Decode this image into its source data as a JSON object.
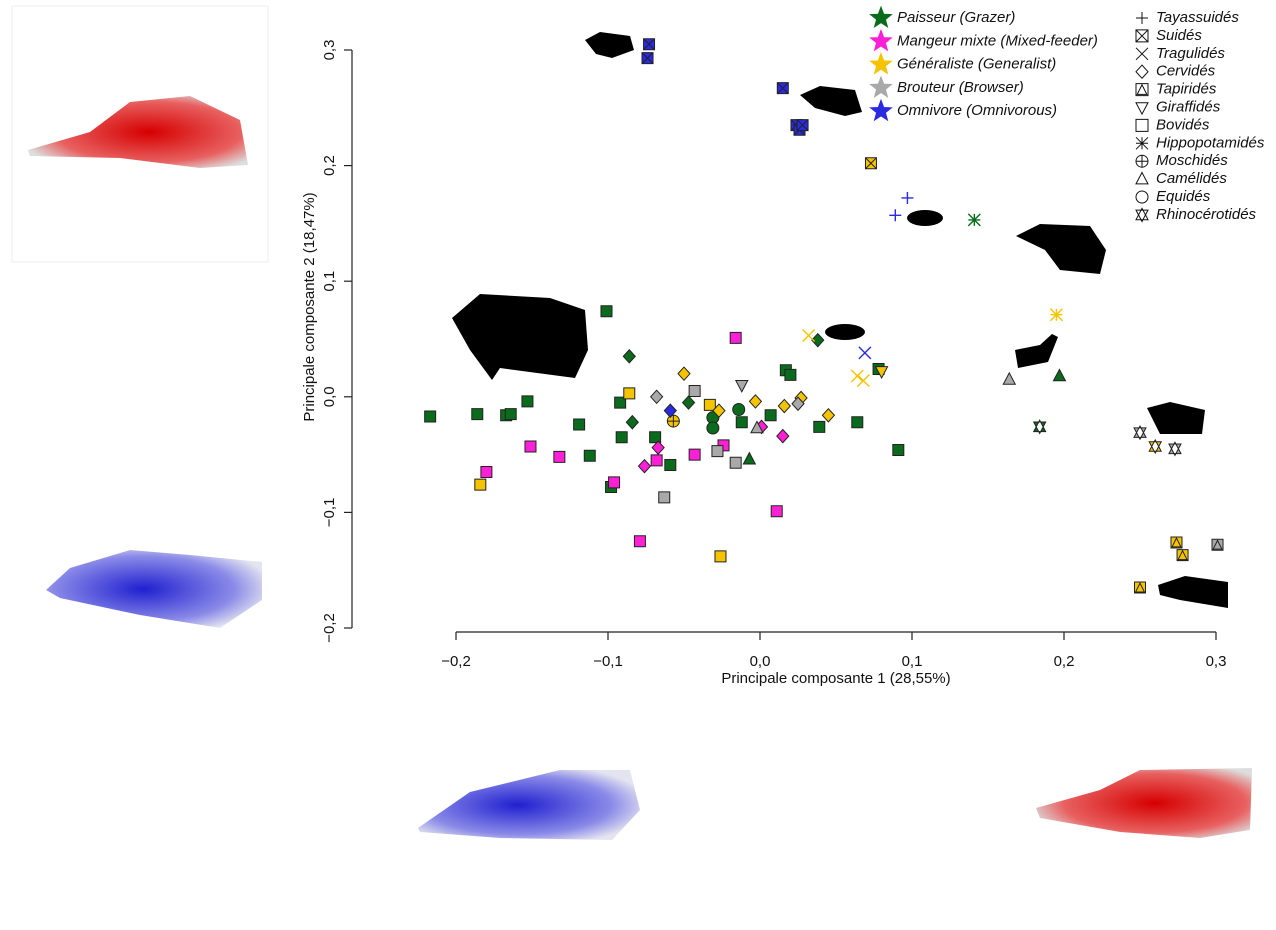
{
  "chart_data": {
    "type": "scatter",
    "x_label": "Principale composante 1 (28,55%)",
    "y_label": "Principale composante 2 (18,47%)",
    "xlim": [
      -0.2,
      0.3
    ],
    "ylim": [
      -0.2,
      0.3
    ],
    "xticks": [
      {
        "value": -0.2,
        "label": "−0,2"
      },
      {
        "value": -0.1,
        "label": "−0,1"
      },
      {
        "value": 0,
        "label": "0,0"
      },
      {
        "value": 0.1,
        "label": "0,1"
      },
      {
        "value": 0.2,
        "label": "0,2"
      },
      {
        "value": 0.3,
        "label": "0,3"
      }
    ],
    "yticks": [
      {
        "value": -0.2,
        "label": "−0,2"
      },
      {
        "value": -0.1,
        "label": "−0,1"
      },
      {
        "value": 0,
        "label": "0,0"
      },
      {
        "value": 0.1,
        "label": "0,1"
      },
      {
        "value": 0.2,
        "label": "0,2"
      },
      {
        "value": 0.3,
        "label": "0,3"
      }
    ],
    "families": [
      {
        "name": "Tayassuidés",
        "marker": "plus"
      },
      {
        "name": "Suidés",
        "marker": "crossbox"
      },
      {
        "name": "Tragulidés",
        "marker": "x"
      },
      {
        "name": "Cervidés",
        "marker": "diamond"
      },
      {
        "name": "Tapiridés",
        "marker": "tribox"
      },
      {
        "name": "Giraffidés",
        "marker": "triangle-down"
      },
      {
        "name": "Bovidés",
        "marker": "square"
      },
      {
        "name": "Hippopotamidés",
        "marker": "asterisk"
      },
      {
        "name": "Moschidés",
        "marker": "crosscircle"
      },
      {
        "name": "Camélidés",
        "marker": "triangle"
      },
      {
        "name": "Equidés",
        "marker": "circle"
      },
      {
        "name": "Rhinocérotidés",
        "marker": "hexstar"
      }
    ],
    "series": [
      {
        "name": "Paisseur (Grazer)",
        "color": "#0b6b1c",
        "x": [
          -0.101,
          -0.217,
          -0.186,
          -0.167,
          -0.164,
          -0.153,
          -0.119,
          -0.112,
          -0.098,
          -0.092,
          -0.091,
          -0.069,
          -0.059,
          -0.012,
          0.007,
          0.017,
          0.02,
          0.039,
          0.064,
          0.078,
          0.091,
          -0.086,
          -0.084,
          -0.047,
          0.038,
          -0.031,
          -0.031,
          -0.014,
          -0.007,
          0.197,
          0.141,
          0.184
        ],
        "values": [
          0.074,
          -0.017,
          -0.015,
          -0.016,
          -0.015,
          -0.004,
          -0.024,
          -0.051,
          -0.078,
          -0.005,
          -0.035,
          -0.035,
          -0.059,
          -0.022,
          -0.016,
          0.023,
          0.019,
          -0.026,
          -0.022,
          0.024,
          -0.046,
          0.035,
          -0.022,
          -0.005,
          0.049,
          -0.018,
          -0.027,
          -0.011,
          -0.054,
          0.018,
          0.153,
          -0.026
        ],
        "families": [
          "Bovidés",
          "Bovidés",
          "Bovidés",
          "Bovidés",
          "Bovidés",
          "Bovidés",
          "Bovidés",
          "Bovidés",
          "Bovidés",
          "Bovidés",
          "Bovidés",
          "Bovidés",
          "Bovidés",
          "Bovidés",
          "Bovidés",
          "Bovidés",
          "Bovidés",
          "Bovidés",
          "Bovidés",
          "Bovidés",
          "Bovidés",
          "Cervidés",
          "Cervidés",
          "Cervidés",
          "Cervidés",
          "Equidés",
          "Equidés",
          "Equidés",
          "Camélidés",
          "Camélidés",
          "Hippopotamidés",
          "Rhinocérotidés"
        ]
      },
      {
        "name": "Mangeur mixte (Mixed-feeder)",
        "color": "#ff1fd6",
        "x": [
          -0.016,
          -0.18,
          -0.151,
          -0.132,
          -0.096,
          -0.079,
          -0.068,
          -0.043,
          -0.024,
          0.011,
          -0.067,
          -0.076,
          0.001,
          0.015
        ],
        "values": [
          0.051,
          -0.065,
          -0.043,
          -0.052,
          -0.074,
          -0.125,
          -0.055,
          -0.05,
          -0.042,
          -0.099,
          -0.044,
          -0.06,
          -0.026,
          -0.034
        ],
        "families": [
          "Bovidés",
          "Bovidés",
          "Bovidés",
          "Bovidés",
          "Bovidés",
          "Bovidés",
          "Bovidés",
          "Bovidés",
          "Bovidés",
          "Bovidés",
          "Cervidés",
          "Cervidés",
          "Cervidés",
          "Cervidés"
        ]
      },
      {
        "name": "Généraliste (Generalist)",
        "color": "#f5c400",
        "x": [
          -0.184,
          -0.086,
          -0.033,
          -0.026,
          0.274,
          0.25,
          0.278,
          -0.05,
          -0.027,
          -0.003,
          0.016,
          0.027,
          0.045,
          0.032,
          0.064,
          0.068,
          -0.057,
          0.08,
          0.195,
          0.26,
          0.073
        ],
        "values": [
          -0.076,
          0.003,
          -0.007,
          -0.138,
          -0.126,
          -0.165,
          -0.137,
          0.02,
          -0.012,
          -0.004,
          -0.008,
          -0.001,
          -0.016,
          0.053,
          0.018,
          0.014,
          -0.021,
          0.022,
          0.071,
          -0.043,
          0.202
        ],
        "families": [
          "Bovidés",
          "Bovidés",
          "Bovidés",
          "Bovidés",
          "Tapiridés",
          "Tapiridés",
          "Tapiridés",
          "Cervidés",
          "Cervidés",
          "Cervidés",
          "Cervidés",
          "Cervidés",
          "Cervidés",
          "Tragulidés",
          "Tragulidés",
          "Tragulidés",
          "Moschidés",
          "Giraffidés",
          "Hippopotamidés",
          "Rhinocérotidés",
          "Suidés"
        ]
      },
      {
        "name": "Brouteur (Browser)",
        "color": "#a9a9a9",
        "x": [
          -0.043,
          -0.028,
          -0.016,
          -0.063,
          -0.068,
          0.025,
          -0.012,
          0.164,
          -0.002,
          0.25,
          0.273,
          0.301
        ],
        "values": [
          0.005,
          -0.047,
          -0.057,
          -0.087,
          0.0,
          -0.006,
          0.01,
          0.015,
          -0.027,
          -0.031,
          -0.045,
          -0.128
        ],
        "families": [
          "Bovidés",
          "Bovidés",
          "Bovidés",
          "Bovidés",
          "Cervidés",
          "Cervidés",
          "Giraffidés",
          "Camélidés",
          "Camélidés",
          "Rhinocérotidés",
          "Rhinocérotidés",
          "Tapiridés"
        ]
      },
      {
        "name": "Omnivore (Omnivorous)",
        "color": "#2a2ae0",
        "x": [
          -0.073,
          -0.074,
          0.015,
          0.024,
          0.026,
          0.028,
          0.097,
          0.089,
          0.069,
          -0.059
        ],
        "values": [
          0.305,
          0.293,
          0.267,
          0.235,
          0.231,
          0.235,
          0.172,
          0.157,
          0.038,
          -0.012
        ],
        "families": [
          "Suidés",
          "Suidés",
          "Suidés",
          "Suidés",
          "Suidés",
          "Suidés",
          "Tayassuidés",
          "Tayassuidés",
          "Tragulidés",
          "Cervidés"
        ]
      }
    ]
  }
}
